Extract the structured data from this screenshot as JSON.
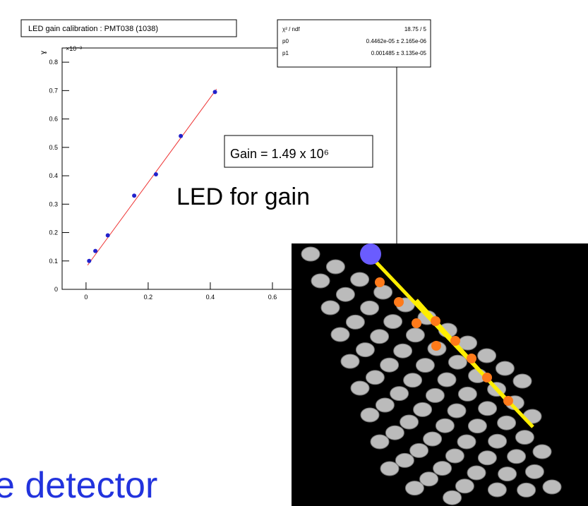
{
  "chart_data": {
    "type": "scatter",
    "title": "LED gain calibration : PMT038 (1038)",
    "y_multiplier": "×10⁻³",
    "x": [
      0.01,
      0.03,
      0.07,
      0.155,
      0.225,
      0.305,
      0.415
    ],
    "values": [
      0.1,
      0.135,
      0.19,
      0.33,
      0.405,
      0.54,
      0.695
    ],
    "color": "#2222cc",
    "fit_color": "#ee3333",
    "xlim": [
      -0.077,
      1.0
    ],
    "xticks": [
      0,
      0.2,
      0.4,
      0.6
    ],
    "ylim": [
      0,
      0.85
    ],
    "yticks": [
      0,
      0.1,
      0.2,
      0.3,
      0.4,
      0.5,
      0.6,
      0.7,
      0.8
    ],
    "stats": {
      "rows": [
        [
          "χ² / ndf",
          "18.75 / 5"
        ],
        [
          "p0",
          "0.4462e-05 ± 2.165e-06"
        ],
        [
          "p1",
          "0.001485 ± 3.135e-05"
        ]
      ]
    }
  },
  "gain_label": "Gain = 1.49 x 10⁶",
  "heading": "LED for gain",
  "footer_text": "e detector"
}
